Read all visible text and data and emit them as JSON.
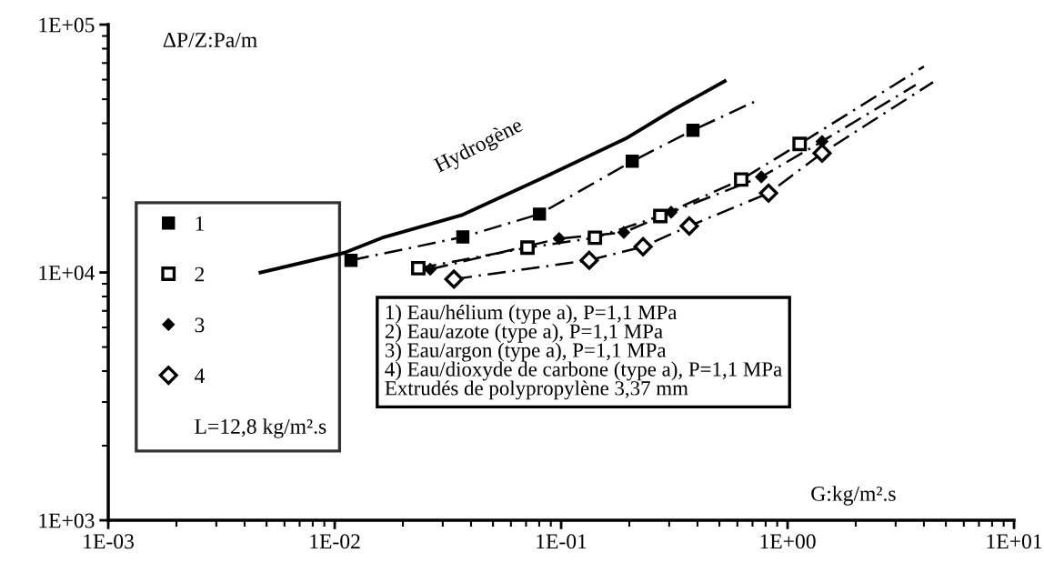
{
  "chart_data": {
    "type": "line",
    "xlabel": "G:kg/m².s",
    "ylabel": "ΔP/Z:Pa/m",
    "log": "xy",
    "xlim": [
      0.001,
      10
    ],
    "ylim": [
      1000,
      100000
    ],
    "xticks": [
      {
        "value": 0.001,
        "label": "1E-03"
      },
      {
        "value": 0.01,
        "label": "1E-02"
      },
      {
        "value": 0.1,
        "label": "1E-01"
      },
      {
        "value": 1,
        "label": "1E+00"
      },
      {
        "value": 10,
        "label": "1E+01"
      }
    ],
    "yticks": [
      {
        "value": 1000,
        "label": "1E+03"
      },
      {
        "value": 10000,
        "label": "1E+04"
      },
      {
        "value": 100000,
        "label": "1E+05"
      }
    ],
    "grid": false,
    "legend": "left",
    "series": [
      {
        "name": "Hydrogène",
        "color": "#000000",
        "line_style": "solid",
        "marker": "none",
        "x": [
          0.0047,
          0.011,
          0.0162,
          0.0368,
          0.0847,
          0.193,
          0.315,
          0.528
        ],
        "values": [
          10000,
          12000,
          13800,
          17100,
          24300,
          34700,
          45500,
          59200
        ]
      },
      {
        "color": "#000000",
        "line_style": "dashed",
        "marker": "none",
        "x": [
          0.0118,
          0.0368,
          0.0802,
          0.206,
          0.382,
          0.736
        ],
        "values": [
          11200,
          13900,
          17200,
          28100,
          37500,
          49500
        ]
      },
      {
        "color": "#000000",
        "line_style": "dashed",
        "marker": "none",
        "x": [
          0.0234,
          0.071,
          0.141,
          0.274,
          0.624,
          1.13,
          4.0
        ],
        "values": [
          10400,
          12600,
          13800,
          16900,
          23700,
          33000,
          67800
        ]
      },
      {
        "color": "#000000",
        "line_style": "dashed",
        "marker": "none",
        "x": [
          0.0264,
          0.098,
          0.189,
          0.306,
          0.766,
          1.42,
          3.68
        ],
        "values": [
          10300,
          13700,
          14500,
          17500,
          24300,
          33800,
          57100
        ]
      },
      {
        "color": "#000000",
        "line_style": "dashed",
        "marker": "none",
        "x": [
          0.0336,
          0.133,
          0.23,
          0.368,
          0.824,
          1.42,
          4.39
        ],
        "values": [
          9400,
          11200,
          12700,
          15400,
          20900,
          30300,
          58600
        ]
      },
      {
        "name": "1",
        "type": "scatter",
        "color": "#000000",
        "marker": "square",
        "x": [
          0.0118,
          0.0368,
          0.0802,
          0.206,
          0.382
        ],
        "values": [
          11200,
          13900,
          17200,
          28100,
          37500
        ]
      },
      {
        "name": "2",
        "type": "scatter",
        "color": "#000000",
        "marker": "square-open",
        "x": [
          0.0234,
          0.071,
          0.141,
          0.274,
          0.624,
          1.13
        ],
        "values": [
          10400,
          12600,
          13800,
          16900,
          23700,
          33000
        ]
      },
      {
        "name": "3",
        "type": "scatter",
        "color": "#000000",
        "marker": "diamond",
        "x": [
          0.0264,
          0.098,
          0.189,
          0.306,
          0.766,
          1.42
        ],
        "values": [
          10300,
          13700,
          14500,
          17500,
          24300,
          33800
        ]
      },
      {
        "name": "4",
        "type": "scatter",
        "color": "#000000",
        "marker": "diamond-open",
        "x": [
          0.0336,
          0.133,
          0.23,
          0.368,
          0.824,
          1.42
        ],
        "values": [
          9400,
          11200,
          12700,
          15400,
          20900,
          30300
        ]
      }
    ],
    "annotations": [
      "L=12,8 kg/m².s",
      "1) Eau/hélium (type a), P=1,1 MPa\n2) Eau/azote (type a), P=1,1 MPa\n3) Eau/argon (type a), P=1,1 MPa\n4) Eau/dioxyde de carbone (type a), P=1,1 MPa\nExtrudés de polypropylène 3,37 mm"
    ]
  }
}
